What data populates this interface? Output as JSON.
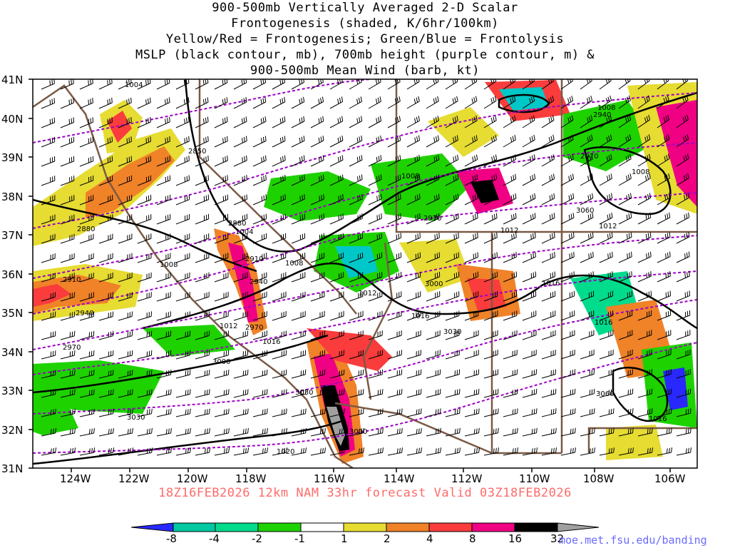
{
  "title": {
    "lines": [
      "900-500mb Vertically Averaged 2-D Scalar",
      "Frontogenesis (shaded, K/6hr/100km)",
      "Yellow/Red = Frontogenesis;  Green/Blue = Frontolysis",
      "MSLP (black contour, mb), 700mb height (purple contour, m) &",
      "900-500mb Mean Wind (barb, kt)"
    ]
  },
  "axes": {
    "lat_labels": [
      "41N",
      "40N",
      "39N",
      "38N",
      "37N",
      "36N",
      "35N",
      "34N",
      "33N",
      "32N",
      "31N"
    ],
    "lon_labels": [
      "124W",
      "122W",
      "120W",
      "118W",
      "116W",
      "114W",
      "112W",
      "110W",
      "108W",
      "106W"
    ]
  },
  "colors": {
    "frontogenesis_yellow": "#e6dc32",
    "frontogenesis_orange": "#f08228",
    "frontogenesis_red": "#fa3c3c",
    "frontogenesis_magenta": "#f00082",
    "frontogenesis_black": "#000000",
    "frontogenesis_gray": "#a0a0a0",
    "frontolysis_green": "#1ed200",
    "frontolysis_teal": "#00dc8c",
    "frontolysis_cyan": "#00c8c8",
    "frontolysis_blue": "#2828ff",
    "mslp_contour": "#000000",
    "height_contour": "#a000c8",
    "borders": "#7a5a46"
  },
  "contour_labels": {
    "mslp": [
      "1004",
      "1008",
      "1008",
      "1004",
      "1008",
      "1008",
      "1012",
      "1016",
      "1016",
      "1012",
      "1016",
      "1008",
      "1012",
      "1016",
      "1020",
      "1016",
      "1012"
    ],
    "height": [
      "2880",
      "2910",
      "2940",
      "2970",
      "2850",
      "2880",
      "2910",
      "2940",
      "2970",
      "3000",
      "3030",
      "3000",
      "3030",
      "3060",
      "2970",
      "3000",
      "3030",
      "2940",
      "2970",
      "3060"
    ]
  },
  "colorbar": {
    "ticks": [
      "-8",
      "-4",
      "-2",
      "-1",
      "1",
      "2",
      "4",
      "8",
      "16",
      "32"
    ]
  },
  "forecast_label": "18Z16FEB2026 12km NAM 33hr forecast Valid 03Z18FEB2026",
  "credit": "moe.met.fsu.edu/banding"
}
